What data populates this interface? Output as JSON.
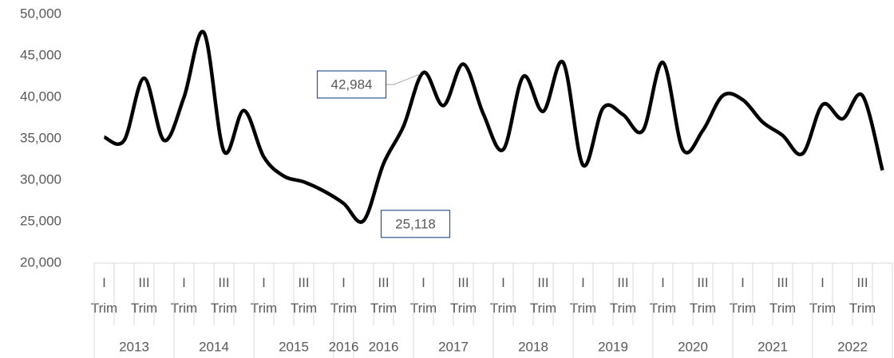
{
  "chart_data": {
    "type": "line",
    "categories": [
      "I Trim",
      null,
      "III Trim",
      null,
      "I Trim",
      null,
      "III Trim",
      null,
      "I Trim",
      null,
      "III Trim",
      null,
      "I Trim",
      null,
      "III Trim",
      null,
      "I Trim",
      null,
      "III Trim",
      null,
      "I Trim",
      null,
      "III Trim",
      null,
      "I Trim",
      null,
      "III Trim",
      null,
      "I Trim",
      null,
      "III Trim",
      null,
      "I Trim",
      null,
      "III Trim",
      null,
      "I Trim",
      null,
      "III Trim",
      null
    ],
    "groups": [
      {
        "label": "2013",
        "size": 4
      },
      {
        "label": "2014",
        "size": 4
      },
      {
        "label": "2015",
        "size": 4
      },
      {
        "label": "2016",
        "size": 1
      },
      {
        "label": "2016",
        "size": 3
      },
      {
        "label": "2017",
        "size": 4
      },
      {
        "label": "2018",
        "size": 4
      },
      {
        "label": "2019",
        "size": 4
      },
      {
        "label": "2020",
        "size": 4
      },
      {
        "label": "2021",
        "size": 4
      },
      {
        "label": "2022",
        "size": 4
      }
    ],
    "series": [
      {
        "color": "#000000",
        "values": [
          35200,
          34800,
          42300,
          34800,
          40000,
          47800,
          33500,
          38400,
          32800,
          30500,
          29800,
          28700,
          27200,
          25118,
          32000,
          36500,
          42984,
          39000,
          44000,
          38000,
          33700,
          42500,
          38300,
          44200,
          31800,
          38700,
          37900,
          36000,
          44200,
          33700,
          36000,
          40200,
          39700,
          37000,
          35400,
          33200,
          39100,
          37400,
          40200,
          31200
        ],
        "value_labels": [
          null,
          null,
          null,
          null,
          null,
          null,
          null,
          null,
          null,
          null,
          null,
          null,
          null,
          "25,118",
          null,
          null,
          "42,984",
          null,
          null,
          null,
          null,
          null,
          null,
          null,
          null,
          null,
          null,
          null,
          null,
          null,
          null,
          null,
          null,
          null,
          null,
          null,
          null,
          null,
          null,
          null
        ]
      }
    ],
    "ylim": [
      20000,
      50000
    ],
    "yticks": [
      {
        "value": 20000,
        "label": "20,000"
      },
      {
        "value": 25000,
        "label": "25,000"
      },
      {
        "value": 30000,
        "label": "30,000"
      },
      {
        "value": 35000,
        "label": "35,000"
      },
      {
        "value": 40000,
        "label": "40,000"
      },
      {
        "value": 45000,
        "label": "45,000"
      },
      {
        "value": 50000,
        "label": "50,000"
      }
    ],
    "grid": false
  }
}
